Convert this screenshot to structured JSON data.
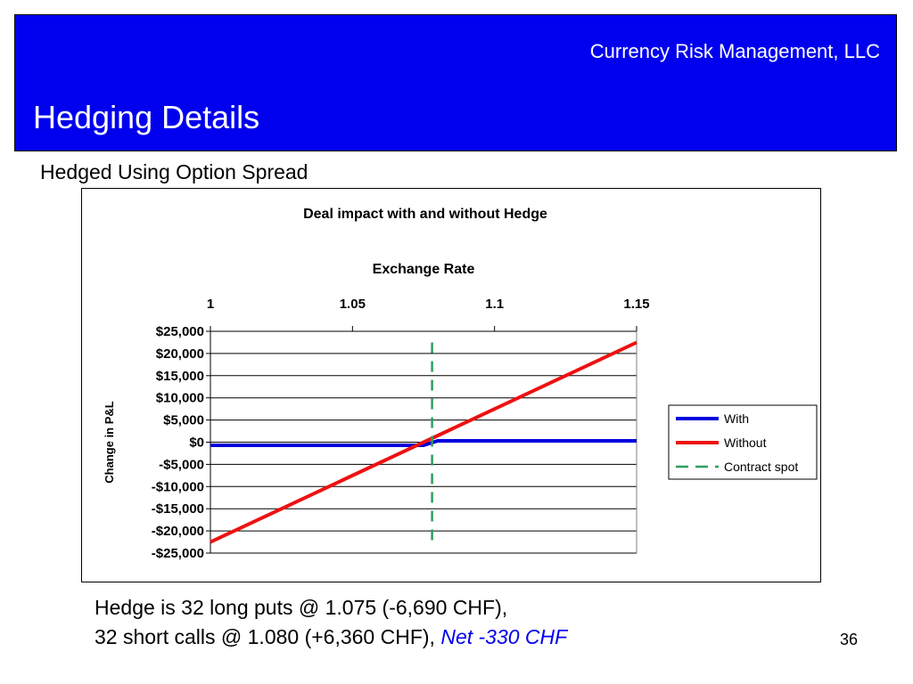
{
  "slide": {
    "company": "Currency Risk Management, LLC",
    "title": "Hedging Details",
    "subtitle": "Hedged Using Option Spread",
    "note_line1": "Hedge is 32 long puts @ 1.075 (-6,690 CHF),",
    "note_line2": "32 short calls @ 1.080 (+6,360 CHF), ",
    "note_net": "Net -330 CHF",
    "page_number": "36"
  },
  "colors": {
    "header_bg": "#0000ee",
    "with": "#0000dd",
    "without": "#ee1111",
    "contract_spot": "#2e9e5e",
    "net_text": "#0000ee"
  },
  "chart_data": {
    "type": "line",
    "title": "Deal impact with and without Hedge",
    "xlabel": "Exchange Rate",
    "ylabel": "Change in P&L",
    "xlim": [
      1.0,
      1.15
    ],
    "ylim": [
      -25000,
      25000
    ],
    "x_axis_position": "top",
    "x_ticks": [
      1.0,
      1.05,
      1.1,
      1.15
    ],
    "x_tick_labels": [
      "1",
      "1.05",
      "1.1",
      "1.15"
    ],
    "y_ticks": [
      25000,
      20000,
      15000,
      10000,
      5000,
      0,
      -5000,
      -10000,
      -15000,
      -20000,
      -25000
    ],
    "y_tick_labels": [
      "$25,000",
      "$20,000",
      "$15,000",
      "$10,000",
      "$5,000",
      "$0",
      "-$5,000",
      "-$10,000",
      "-$15,000",
      "-$20,000",
      "-$25,000"
    ],
    "grid": true,
    "legend_position": "right",
    "series": [
      {
        "name": "With",
        "color": "#0000dd",
        "dash": false,
        "x": [
          1.0,
          1.075,
          1.08,
          1.15
        ],
        "y": [
          -700,
          -700,
          300,
          300
        ]
      },
      {
        "name": "Without",
        "color": "#ee1111",
        "dash": false,
        "x": [
          1.0,
          1.15
        ],
        "y": [
          -22500,
          22500
        ]
      },
      {
        "name": "Contract spot",
        "color": "#2e9e5e",
        "dash": true,
        "x": [
          1.078,
          1.078
        ],
        "y": [
          22500,
          -22500
        ]
      }
    ]
  }
}
